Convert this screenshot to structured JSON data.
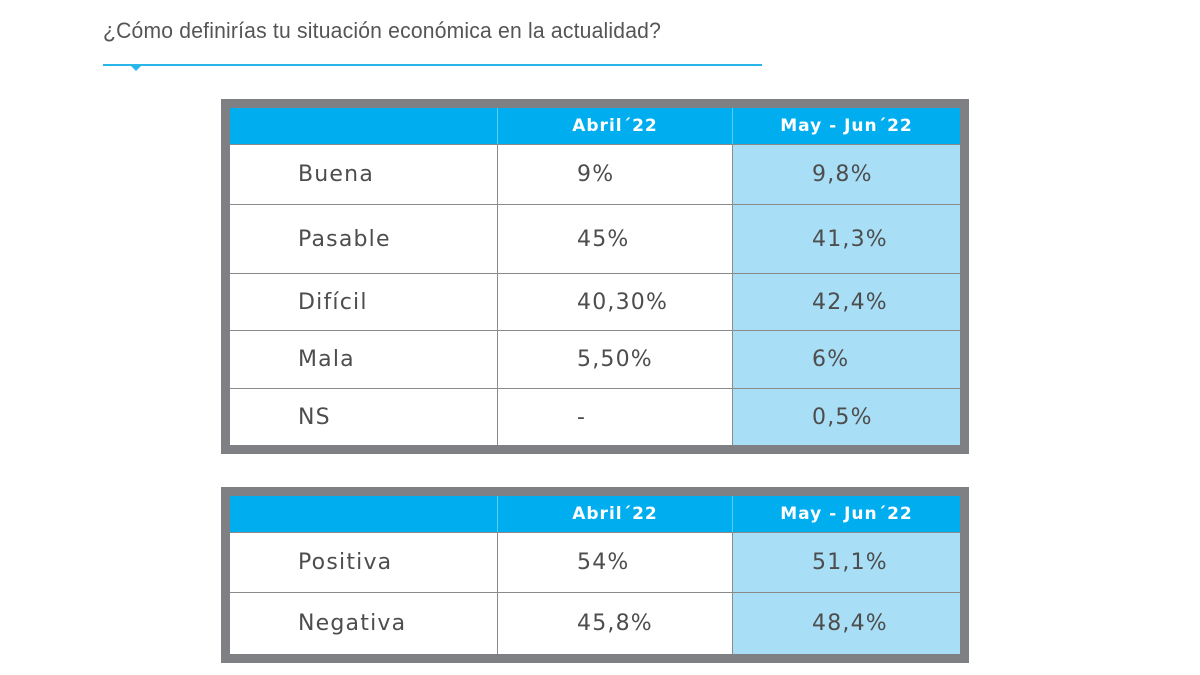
{
  "title": "¿Cómo definirías tu situación económica en la actualidad?",
  "colors": {
    "header": "#00aeef",
    "highlight_column": "#a8dff6",
    "frame": "#7f8083",
    "rule": "#29b6e8"
  },
  "table1": {
    "headers": [
      "",
      "Abril´22",
      "May - Jun´22"
    ],
    "rows": [
      {
        "label": "Buena",
        "abril": "9%",
        "mayjun": "9,8%"
      },
      {
        "label": "Pasable",
        "abril": "45%",
        "mayjun": "41,3%"
      },
      {
        "label": "Difícil",
        "abril": "40,30%",
        "mayjun": "42,4%"
      },
      {
        "label": "Mala",
        "abril": "5,50%",
        "mayjun": "6%"
      },
      {
        "label": "NS",
        "abril": "-",
        "mayjun": "0,5%"
      }
    ]
  },
  "table2": {
    "headers": [
      "",
      "Abril´22",
      "May - Jun´22"
    ],
    "rows": [
      {
        "label": "Positiva",
        "abril": "54%",
        "mayjun": "51,1%"
      },
      {
        "label": "Negativa",
        "abril": "45,8%",
        "mayjun": "48,4%"
      }
    ]
  }
}
